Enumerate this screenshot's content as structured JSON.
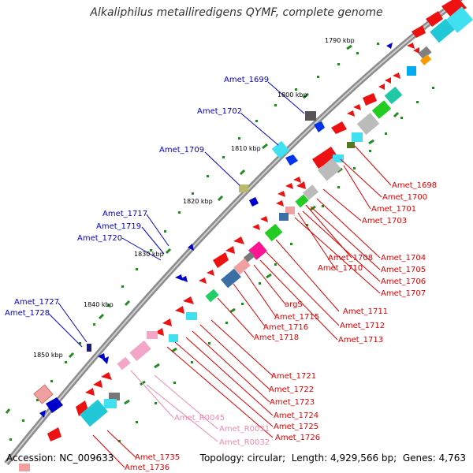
{
  "title": "Alkaliphilus metalliredigens QYMF, complete genome",
  "footer": {
    "accession_label": "Accession:",
    "accession": "NC_009633",
    "topology_label": "Topology:",
    "topology": "circular",
    "length_label": "Length:",
    "length": "4,929,566 bp",
    "genes_label": "Genes:",
    "genes": "4,763"
  },
  "colors": {
    "backbone": "#8c8c8c",
    "forward_label": "#0000cc",
    "reverse_label": "#e00000",
    "rna_label": "#f08ab0",
    "tick": "#228b22"
  },
  "ticks": [
    {
      "label": "1790 kbp"
    },
    {
      "label": "1800 kbp"
    },
    {
      "label": "1810 kbp"
    },
    {
      "label": "1820 kbp"
    },
    {
      "label": "1830 kbp"
    },
    {
      "label": "1840 kbp"
    },
    {
      "label": "1850 kbp"
    }
  ],
  "forward_labels": [
    {
      "text": "Amet_1699"
    },
    {
      "text": "Amet_1702"
    },
    {
      "text": "Amet_1709"
    },
    {
      "text": "Amet_1717"
    },
    {
      "text": "Amet_1719"
    },
    {
      "text": "Amet_1720"
    },
    {
      "text": "Amet_1727"
    },
    {
      "text": "Amet_1728"
    }
  ],
  "reverse_labels": [
    {
      "text": "Amet_1698"
    },
    {
      "text": "Amet_1700"
    },
    {
      "text": "Amet_1701"
    },
    {
      "text": "Amet_1703"
    },
    {
      "text": "Amet_1704"
    },
    {
      "text": "Amet_1705"
    },
    {
      "text": "Amet_1706"
    },
    {
      "text": "Amet_1707"
    },
    {
      "text": "Amet_1708"
    },
    {
      "text": "Amet_1710"
    },
    {
      "text": "Amet_1711"
    },
    {
      "text": "Amet_1712"
    },
    {
      "text": "Amet_1713"
    },
    {
      "text": "argS"
    },
    {
      "text": "Amet_1715"
    },
    {
      "text": "Amet_1716"
    },
    {
      "text": "Amet_1718"
    },
    {
      "text": "Amet_1721"
    },
    {
      "text": "Amet_1722"
    },
    {
      "text": "Amet_1723"
    },
    {
      "text": "Amet_1724"
    },
    {
      "text": "Amet_1725"
    },
    {
      "text": "Amet_1726"
    },
    {
      "text": "Amet_1735"
    },
    {
      "text": "Amet_1736"
    }
  ],
  "rna_labels": [
    {
      "text": "Amet_R0045"
    },
    {
      "text": "Amet_R0031"
    },
    {
      "text": "Amet_R0032"
    }
  ]
}
